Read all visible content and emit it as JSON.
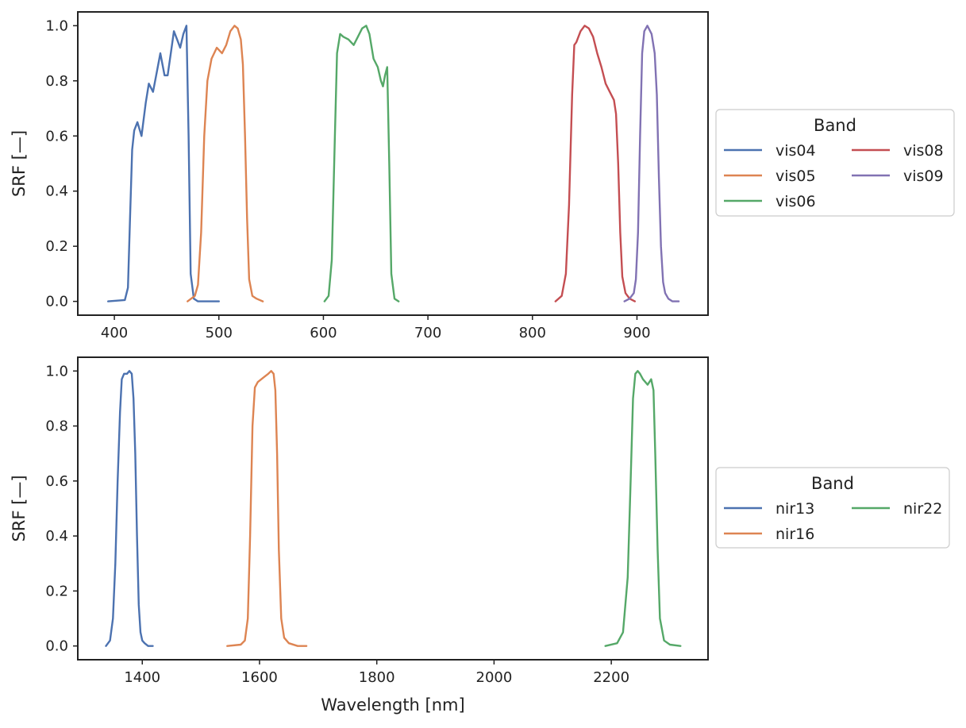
{
  "colors": {
    "blue": "#4c72b0",
    "orange": "#dd8452",
    "green": "#55a868",
    "red": "#c44e52",
    "purple": "#8172b3"
  },
  "chart_data": [
    {
      "type": "line",
      "ylabel": "SRF [—]",
      "xlabel": "",
      "xlim": [
        365,
        968
      ],
      "ylim": [
        -0.05,
        1.05
      ],
      "xticks": [
        400,
        500,
        600,
        700,
        800,
        900
      ],
      "yticks": [
        0.0,
        0.2,
        0.4,
        0.6,
        0.8,
        1.0
      ],
      "legend": {
        "title": "Band",
        "placement": "outside-right",
        "columns": 2
      },
      "series": [
        {
          "name": "vis04",
          "color": "blue",
          "x": [
            394,
            410,
            413,
            415,
            417,
            419,
            422,
            426,
            430,
            433,
            437,
            441,
            444,
            448,
            451,
            454,
            457,
            460,
            463,
            466,
            469,
            471,
            473,
            476,
            480,
            485,
            490,
            500
          ],
          "y": [
            0.0,
            0.005,
            0.05,
            0.3,
            0.55,
            0.62,
            0.65,
            0.6,
            0.72,
            0.79,
            0.76,
            0.84,
            0.9,
            0.82,
            0.82,
            0.9,
            0.98,
            0.95,
            0.92,
            0.97,
            1.0,
            0.6,
            0.1,
            0.01,
            0.0,
            0.0,
            0.0,
            0.0
          ]
        },
        {
          "name": "vis05",
          "color": "orange",
          "x": [
            470,
            477,
            480,
            483,
            486,
            489,
            493,
            498,
            503,
            507,
            511,
            515,
            518,
            521,
            523,
            525,
            527,
            529,
            532,
            536,
            542
          ],
          "y": [
            0.0,
            0.02,
            0.06,
            0.25,
            0.6,
            0.8,
            0.88,
            0.92,
            0.9,
            0.93,
            0.98,
            1.0,
            0.99,
            0.95,
            0.86,
            0.6,
            0.3,
            0.08,
            0.02,
            0.01,
            0.0
          ]
        },
        {
          "name": "vis06",
          "color": "green",
          "x": [
            601,
            605,
            608,
            611,
            613,
            616,
            619,
            624,
            629,
            633,
            637,
            641,
            644,
            648,
            652,
            655,
            657,
            659,
            661,
            663,
            665,
            668,
            672
          ],
          "y": [
            0.0,
            0.02,
            0.15,
            0.6,
            0.9,
            0.97,
            0.96,
            0.95,
            0.93,
            0.96,
            0.99,
            1.0,
            0.97,
            0.88,
            0.85,
            0.8,
            0.78,
            0.82,
            0.85,
            0.5,
            0.1,
            0.01,
            0.0
          ]
        },
        {
          "name": "vis08",
          "color": "red",
          "x": [
            822,
            828,
            832,
            835,
            838,
            840,
            842,
            846,
            850,
            854,
            858,
            862,
            866,
            870,
            874,
            878,
            880,
            882,
            884,
            886,
            889,
            893,
            898
          ],
          "y": [
            0.0,
            0.02,
            0.1,
            0.35,
            0.75,
            0.93,
            0.94,
            0.98,
            1.0,
            0.99,
            0.96,
            0.9,
            0.85,
            0.79,
            0.76,
            0.73,
            0.68,
            0.5,
            0.25,
            0.09,
            0.03,
            0.01,
            0.0
          ]
        },
        {
          "name": "vis09",
          "color": "purple",
          "x": [
            888,
            893,
            897,
            899,
            901,
            903,
            905,
            907,
            910,
            914,
            917,
            919,
            921,
            923,
            925,
            927,
            930,
            934,
            940
          ],
          "y": [
            0.0,
            0.01,
            0.03,
            0.08,
            0.25,
            0.6,
            0.9,
            0.98,
            1.0,
            0.97,
            0.9,
            0.75,
            0.45,
            0.2,
            0.07,
            0.03,
            0.01,
            0.0,
            0.0
          ]
        }
      ]
    },
    {
      "type": "line",
      "ylabel": "SRF [—]",
      "xlabel": "Wavelength [nm]",
      "xlim": [
        1290,
        2365
      ],
      "ylim": [
        -0.05,
        1.05
      ],
      "xticks": [
        1400,
        1600,
        1800,
        2000,
        2200
      ],
      "yticks": [
        0.0,
        0.2,
        0.4,
        0.6,
        0.8,
        1.0
      ],
      "legend": {
        "title": "Band",
        "placement": "outside-right",
        "columns": 2
      },
      "series": [
        {
          "name": "nir13",
          "color": "blue",
          "x": [
            1338,
            1345,
            1350,
            1354,
            1358,
            1362,
            1365,
            1369,
            1374,
            1378,
            1382,
            1385,
            1388,
            1391,
            1394,
            1397,
            1400,
            1404,
            1410,
            1418
          ],
          "y": [
            0.0,
            0.02,
            0.1,
            0.3,
            0.6,
            0.85,
            0.97,
            0.99,
            0.99,
            1.0,
            0.99,
            0.9,
            0.7,
            0.4,
            0.15,
            0.05,
            0.02,
            0.01,
            0.0,
            0.0
          ]
        },
        {
          "name": "nir16",
          "color": "orange",
          "x": [
            1545,
            1568,
            1575,
            1580,
            1584,
            1588,
            1592,
            1597,
            1603,
            1609,
            1615,
            1620,
            1624,
            1627,
            1630,
            1633,
            1637,
            1642,
            1650,
            1665,
            1680
          ],
          "y": [
            0.0,
            0.005,
            0.02,
            0.1,
            0.4,
            0.8,
            0.94,
            0.96,
            0.97,
            0.98,
            0.99,
            1.0,
            0.99,
            0.93,
            0.7,
            0.35,
            0.1,
            0.03,
            0.01,
            0.0,
            0.0
          ]
        },
        {
          "name": "nir22",
          "color": "green",
          "x": [
            2190,
            2210,
            2220,
            2228,
            2233,
            2237,
            2241,
            2245,
            2249,
            2254,
            2258,
            2262,
            2265,
            2268,
            2272,
            2275,
            2279,
            2283,
            2290,
            2300,
            2318
          ],
          "y": [
            0.0,
            0.01,
            0.05,
            0.25,
            0.6,
            0.9,
            0.99,
            1.0,
            0.99,
            0.97,
            0.96,
            0.95,
            0.96,
            0.97,
            0.93,
            0.7,
            0.35,
            0.1,
            0.02,
            0.005,
            0.0
          ]
        }
      ]
    }
  ]
}
